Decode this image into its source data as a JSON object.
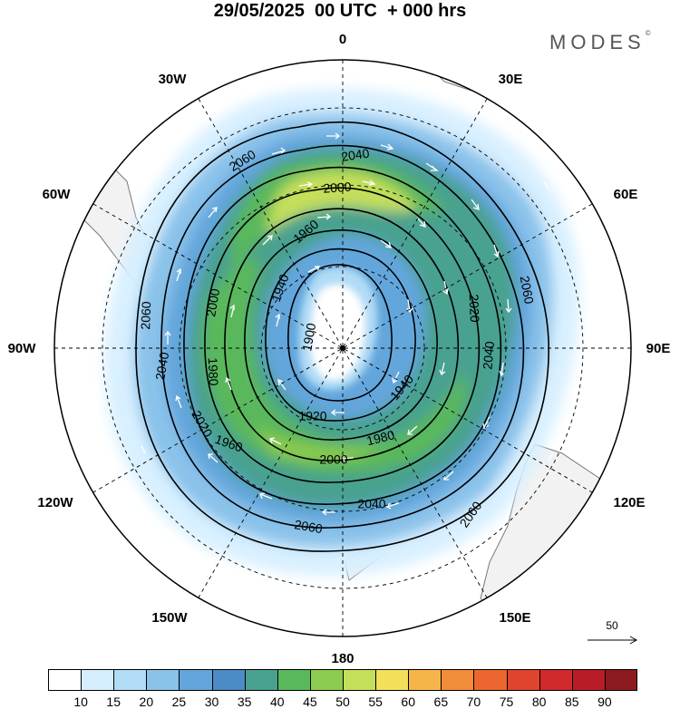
{
  "title": "29/05/2025  00 UTC  + 000 hrs",
  "brand": "MODES",
  "brand_mark": "©",
  "map": {
    "projection": "south polar stereographic",
    "field_filled": "wind speed",
    "field_contours": "geopotential height",
    "pole_marker": "south pole"
  },
  "longitude_labels": {
    "lon_0": "0",
    "lon_30e": "30E",
    "lon_60e": "60E",
    "lon_90e": "90E",
    "lon_120e": "120E",
    "lon_150e": "150E",
    "lon_180": "180",
    "lon_150w": "150W",
    "lon_120w": "120W",
    "lon_90w": "90W",
    "lon_60w": "60W",
    "lon_30w": "30W"
  },
  "contour_labels": [
    {
      "text": "2060",
      "angle": -32
    },
    {
      "text": "2040",
      "angle": -8
    },
    {
      "text": "2000",
      "angle": -4
    },
    {
      "text": "1960",
      "angle": -40
    },
    {
      "text": "1940",
      "angle": -70
    },
    {
      "text": "1900",
      "angle": -80
    },
    {
      "text": "1920",
      "angle": 0
    },
    {
      "text": "1940",
      "angle": -50
    },
    {
      "text": "1980",
      "angle": -14
    },
    {
      "text": "2000",
      "angle": 0
    },
    {
      "text": "2020",
      "angle": 88
    },
    {
      "text": "2040",
      "angle": -85
    },
    {
      "text": "2060",
      "angle": 80
    },
    {
      "text": "2060",
      "angle": -88
    },
    {
      "text": "2040",
      "angle": -80
    },
    {
      "text": "2000",
      "angle": -80
    },
    {
      "text": "1980",
      "angle": 88
    },
    {
      "text": "2020",
      "angle": 60
    },
    {
      "text": "1960",
      "angle": 20
    },
    {
      "text": "2040",
      "angle": 0
    },
    {
      "text": "2060",
      "angle": 10
    },
    {
      "text": "2060",
      "angle": -55
    }
  ],
  "reference_vector": {
    "value": "50"
  },
  "colorbar": {
    "ticks": [
      "10",
      "15",
      "20",
      "25",
      "30",
      "35",
      "40",
      "45",
      "50",
      "55",
      "60",
      "65",
      "70",
      "75",
      "80",
      "85",
      "90"
    ],
    "colors": [
      "#ffffff",
      "#d6efff",
      "#b1dcf6",
      "#8ac2ea",
      "#64a6dc",
      "#4b8cc6",
      "#4aa18f",
      "#5ab85c",
      "#8bcb4f",
      "#c4df5a",
      "#f4df5a",
      "#f6b54a",
      "#f28d3b",
      "#ec6630",
      "#e0442e",
      "#cf2a2c",
      "#b81d27",
      "#8d1a1e"
    ]
  },
  "colors": {
    "land": "#f2f2f2",
    "coast": "#777777",
    "grid": "#000000",
    "contour": "#000000",
    "arrow": "#ffffff"
  }
}
